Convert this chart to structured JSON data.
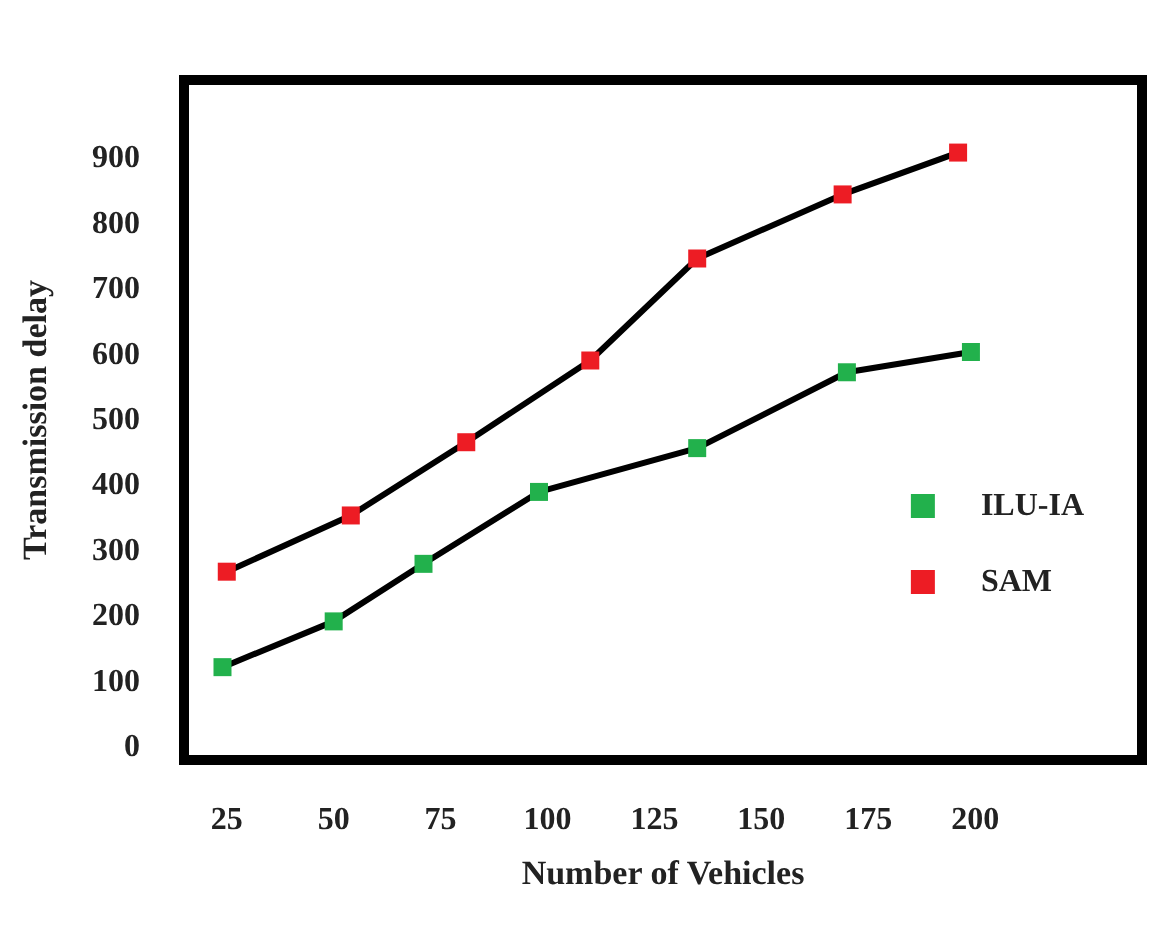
{
  "chart_data": {
    "type": "line",
    "xlabel": "Number of Vehicles",
    "ylabel": "Transmission delay",
    "xlim": [
      15,
      239
    ],
    "xticks": [
      25,
      50,
      75,
      100,
      125,
      150,
      175,
      200
    ],
    "ylim": [
      -20,
      1020
    ],
    "yticks": [
      0,
      100,
      200,
      300,
      400,
      500,
      600,
      700,
      800,
      900
    ],
    "series": [
      {
        "name": "ILU-IA",
        "color": "#22b14c",
        "x": [
          24,
          50,
          71,
          98,
          135,
          170,
          199
        ],
        "values": [
          122,
          192,
          280,
          390,
          457,
          573,
          604
        ]
      },
      {
        "name": "SAM",
        "color": "#ed1c24",
        "x": [
          25,
          54,
          81,
          110,
          135,
          169,
          196
        ],
        "values": [
          268,
          354,
          466,
          591,
          747,
          845,
          909
        ]
      }
    ],
    "marker": "square",
    "line_style": "solid",
    "grid": false,
    "legend": "right"
  }
}
